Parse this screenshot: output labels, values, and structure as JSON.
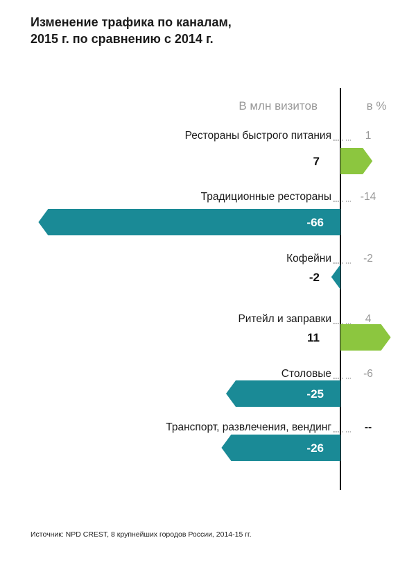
{
  "title_lines": [
    "Изменение трафика по каналам,",
    "2015 г. по сравнению с 2014 г."
  ],
  "source": "Источник: NPD CREST, 8 крупнейших городов России, 2014-15 гг.",
  "colors": {
    "positive": "#8cc63f",
    "negative": "#1a8a96",
    "header_text": "#999999",
    "percent_text": "#999999",
    "axis": "#111111",
    "label_text": "#1a1a1a"
  },
  "chart_data": {
    "type": "bar",
    "orientation": "horizontal-diverging",
    "title": "Изменение трафика по каналам, 2015 г. по сравнению с 2014 г.",
    "column_headers": {
      "value": "В млн визитов",
      "percent": "в %"
    },
    "categories": [
      "Рестораны быстрого питания",
      "Традиционные рестораны",
      "Кофейни",
      "Ритейл и заправки",
      "Столовые",
      "Транспорт, развлечения, вендинг"
    ],
    "series": [
      {
        "name": "В млн визитов",
        "values": [
          7,
          -66,
          -2,
          11,
          -25,
          -26
        ]
      },
      {
        "name": "в %",
        "values": [
          1,
          -14,
          -2,
          4,
          -6,
          null
        ]
      }
    ],
    "value_labels": [
      "7",
      "-66",
      "-2",
      "11",
      "-25",
      "-26"
    ],
    "percent_labels": [
      "1",
      "-14",
      "-2",
      "4",
      "-6",
      "--"
    ],
    "xlim": [
      -66,
      11
    ]
  }
}
